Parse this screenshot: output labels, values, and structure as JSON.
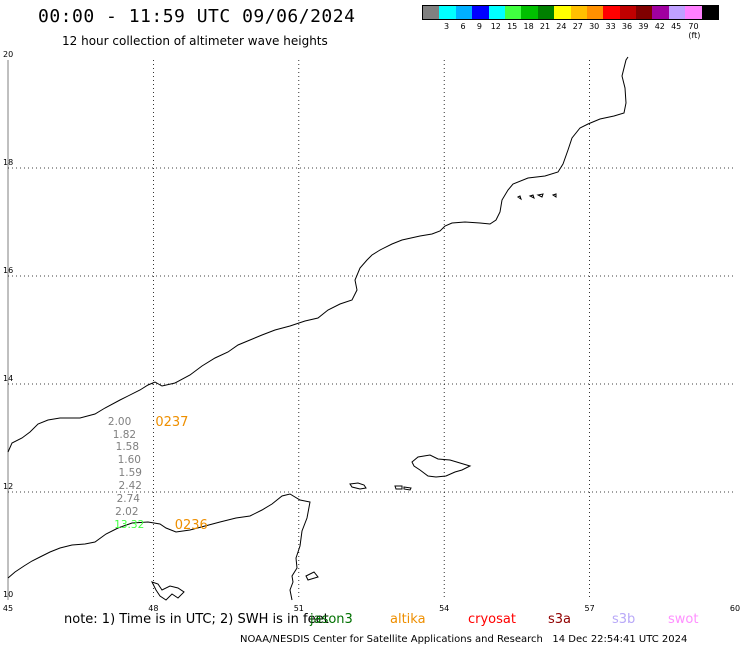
{
  "header": {
    "title": "00:00 - 11:59 UTC 09/06/2024",
    "subtitle": "12 hour collection of altimeter wave heights"
  },
  "legend": {
    "colors": [
      "#808080",
      "#00ffff",
      "#00b0ff",
      "#0000ff",
      "#00ffff",
      "#40ff40",
      "#00c000",
      "#008000",
      "#ffff00",
      "#ffc000",
      "#ff9000",
      "#ff0000",
      "#c00000",
      "#800000",
      "#a000a0",
      "#c0a0ff",
      "#ff80ff",
      "#000000"
    ],
    "labels": [
      "3",
      "6",
      "9",
      "12",
      "15",
      "18",
      "21",
      "24",
      "27",
      "30",
      "33",
      "36",
      "39",
      "42",
      "45",
      "70 (ft)"
    ],
    "tick_values": [
      3,
      6,
      9,
      12,
      15,
      18,
      21,
      24,
      27,
      30,
      33,
      36,
      39,
      42,
      45,
      70
    ]
  },
  "axes": {
    "x_ticks": [
      "45",
      "48",
      "51",
      "54",
      "57",
      "60"
    ],
    "y_ticks": [
      "20",
      "18",
      "16",
      "14",
      "12",
      "10"
    ],
    "lon_range": [
      45,
      60
    ],
    "lat_range": [
      10,
      20
    ]
  },
  "measurements": [
    {
      "value": "2.00",
      "color": "#808080",
      "lon": 47.35,
      "lat": 13.28
    },
    {
      "value": "1.82",
      "color": "#808080",
      "lon": 47.45,
      "lat": 13.04
    },
    {
      "value": "1.58",
      "color": "#808080",
      "lon": 47.51,
      "lat": 12.81
    },
    {
      "value": "1.60",
      "color": "#808080",
      "lon": 47.55,
      "lat": 12.57
    },
    {
      "value": "1.59",
      "color": "#808080",
      "lon": 47.57,
      "lat": 12.33
    },
    {
      "value": "2.42",
      "color": "#808080",
      "lon": 47.57,
      "lat": 12.09
    },
    {
      "value": "2.74",
      "color": "#808080",
      "lon": 47.53,
      "lat": 11.85
    },
    {
      "value": "2.02",
      "color": "#808080",
      "lon": 47.5,
      "lat": 11.61
    },
    {
      "value": "13.32",
      "color": "#40ff40",
      "lon": 47.48,
      "lat": 11.37
    }
  ],
  "passes": [
    {
      "label": "0237",
      "lon": 48.04,
      "lat": 13.28
    },
    {
      "label": "0236",
      "lon": 48.44,
      "lat": 11.37
    }
  ],
  "note": "note: 1) Time is in UTC; 2) SWH is in feet",
  "satellites": [
    {
      "name": "jason3",
      "color": "#007000"
    },
    {
      "name": "altika",
      "color": "#ee8f00"
    },
    {
      "name": "cryosat",
      "color": "#ff0000"
    },
    {
      "name": "s3a",
      "color": "#900000"
    },
    {
      "name": "s3b",
      "color": "#b8a8f8"
    },
    {
      "name": "swot",
      "color": "#ff90ff"
    }
  ],
  "credit": "NOAA/NESDIS Center for Satellite Applications and Research   14 Dec 22:54:41 UTC 2024"
}
